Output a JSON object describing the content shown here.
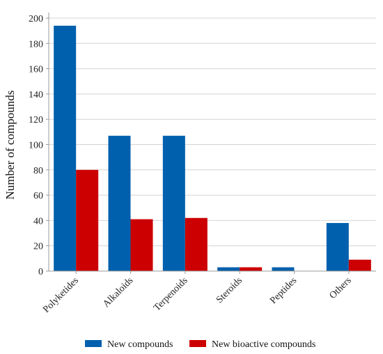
{
  "chart_data": {
    "type": "bar",
    "categories": [
      "Polyketides",
      "Alkaloids",
      "Terpenoids",
      "Steroids",
      "Peptides",
      "Others"
    ],
    "series": [
      {
        "name": "New compounds",
        "color": "#0060ad",
        "values": [
          194,
          107,
          107,
          3,
          3,
          38
        ]
      },
      {
        "name": "New bioactive compounds",
        "color": "#cc0000",
        "values": [
          80,
          41,
          42,
          3,
          0,
          9
        ]
      }
    ],
    "title": "",
    "xlabel": "",
    "ylabel": "Number of compounds",
    "ylim": [
      0,
      200
    ],
    "yticks": [
      0,
      20,
      40,
      60,
      80,
      100,
      120,
      140,
      160,
      180,
      200
    ],
    "grid": true,
    "legend_position": "bottom-center",
    "gridColor": "#d4d4d4",
    "axisColor": "#9a9a9a"
  }
}
